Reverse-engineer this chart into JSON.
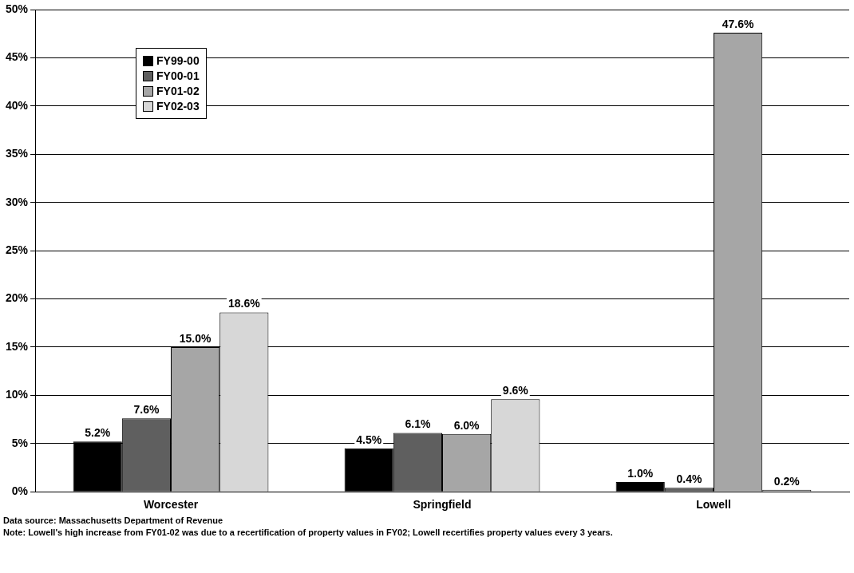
{
  "chart_data": {
    "type": "bar",
    "categories": [
      "Worcester",
      "Springfield",
      "Lowell"
    ],
    "series": [
      {
        "name": "FY99-00",
        "color": "#000000",
        "values": [
          5.2,
          4.5,
          1.0
        ],
        "value_labels": [
          "5.2%",
          "4.5%",
          "1.0%"
        ]
      },
      {
        "name": "FY00-01",
        "color": "#5f5f5f",
        "values": [
          7.6,
          6.1,
          0.4
        ],
        "value_labels": [
          "7.6%",
          "6.1%",
          "0.4%"
        ]
      },
      {
        "name": "FY01-02",
        "color": "#a6a6a6",
        "values": [
          15.0,
          6.0,
          47.6
        ],
        "value_labels": [
          "15.0%",
          "6.0%",
          "47.6%"
        ]
      },
      {
        "name": "FY02-03",
        "color": "#d7d7d7",
        "values": [
          18.6,
          9.6,
          0.2
        ],
        "value_labels": [
          "18.6%",
          "9.6%",
          "0.2%"
        ]
      }
    ],
    "ylim": [
      0,
      50
    ],
    "yticks": [
      {
        "value": 0,
        "label": "0%"
      },
      {
        "value": 5,
        "label": "5%"
      },
      {
        "value": 10,
        "label": "10%"
      },
      {
        "value": 15,
        "label": "15%"
      },
      {
        "value": 20,
        "label": "20%"
      },
      {
        "value": 25,
        "label": "25%"
      },
      {
        "value": 30,
        "label": "30%"
      },
      {
        "value": 35,
        "label": "35%"
      },
      {
        "value": 40,
        "label": "40%"
      },
      {
        "value": 45,
        "label": "45%"
      },
      {
        "value": 50,
        "label": "50%"
      }
    ],
    "grid": "y",
    "legend": "top left",
    "annotations": [
      "Data source: Massachusetts Department of Revenue",
      "Note: Lowell's high increase from FY01-02 was due to a recertification of property values in FY02; Lowell recertifies property values every 3 years."
    ]
  }
}
